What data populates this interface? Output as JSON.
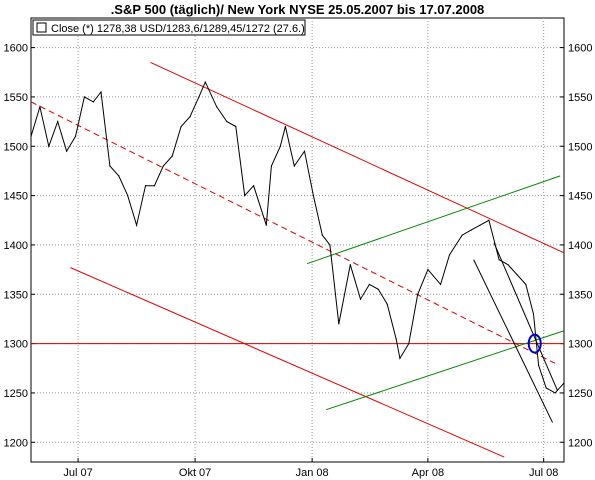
{
  "chart_data": {
    "type": "line",
    "title": ".S&P 500 (täglich)/ New York NYSE 25.05.2007 bis 17.07.2008",
    "legend": {
      "label": "Close (*) 1278,38 USD/1283,6/1289,45/1272 (27.6.)",
      "placement": "top-left"
    },
    "ylim": [
      1180,
      1630
    ],
    "y_ticks": [
      1200,
      1250,
      1300,
      1350,
      1400,
      1450,
      1500,
      1550,
      1600
    ],
    "y_tick_labels": [
      "1200",
      "1250",
      "1300",
      "1350",
      "1400",
      "1450",
      "1500",
      "1550",
      "1600"
    ],
    "xlim": [
      "2007-05-25",
      "2008-07-17"
    ],
    "x_ticks": [
      "2007-07-01",
      "2007-10-01",
      "2008-01-01",
      "2008-04-01",
      "2008-07-01"
    ],
    "x_tick_labels": [
      "Jul 07",
      "Okt 07",
      "Jan 08",
      "Apr 08",
      "Jul 08"
    ],
    "grid": true,
    "series": [
      {
        "name": "Close (*)",
        "color": "#000000",
        "x": [
          "2007-05-25",
          "2007-06-01",
          "2007-06-08",
          "2007-06-15",
          "2007-06-22",
          "2007-06-29",
          "2007-07-06",
          "2007-07-13",
          "2007-07-19",
          "2007-07-26",
          "2007-08-02",
          "2007-08-09",
          "2007-08-16",
          "2007-08-23",
          "2007-08-30",
          "2007-09-06",
          "2007-09-13",
          "2007-09-20",
          "2007-09-27",
          "2007-10-04",
          "2007-10-09",
          "2007-10-18",
          "2007-10-26",
          "2007-11-02",
          "2007-11-09",
          "2007-11-16",
          "2007-11-26",
          "2007-11-30",
          "2007-12-07",
          "2007-12-11",
          "2007-12-18",
          "2007-12-26",
          "2008-01-02",
          "2008-01-09",
          "2008-01-15",
          "2008-01-22",
          "2008-01-31",
          "2008-02-08",
          "2008-02-15",
          "2008-02-22",
          "2008-02-29",
          "2008-03-07",
          "2008-03-10",
          "2008-03-17",
          "2008-03-24",
          "2008-04-01",
          "2008-04-11",
          "2008-04-18",
          "2008-04-28",
          "2008-05-05",
          "2008-05-12",
          "2008-05-19",
          "2008-05-27",
          "2008-06-03",
          "2008-06-10",
          "2008-06-17",
          "2008-06-23",
          "2008-06-27",
          "2008-07-03",
          "2008-07-10",
          "2008-07-17"
        ],
        "values": [
          1510,
          1540,
          1500,
          1525,
          1495,
          1510,
          1550,
          1545,
          1555,
          1480,
          1470,
          1450,
          1420,
          1460,
          1460,
          1480,
          1490,
          1520,
          1530,
          1550,
          1565,
          1540,
          1525,
          1520,
          1450,
          1460,
          1420,
          1480,
          1500,
          1520,
          1480,
          1495,
          1450,
          1410,
          1400,
          1320,
          1380,
          1345,
          1360,
          1355,
          1340,
          1305,
          1285,
          1300,
          1350,
          1375,
          1360,
          1390,
          1410,
          1415,
          1420,
          1425,
          1385,
          1380,
          1370,
          1360,
          1330,
          1278,
          1255,
          1250,
          1260
        ]
      }
    ],
    "trendlines": [
      {
        "name": "",
        "color": "#dd0000",
        "style": "solid",
        "x": [
          "2007-08-27",
          "2008-07-17"
        ],
        "y": [
          1585,
          1392
        ]
      },
      {
        "name": "",
        "color": "#dd0000",
        "style": "dashed",
        "x": [
          "2007-05-25",
          "2008-07-10"
        ],
        "y": [
          1545,
          1280
        ]
      },
      {
        "name": "",
        "color": "#dd0000",
        "style": "solid",
        "x": [
          "2007-06-25",
          "2008-05-31"
        ],
        "y": [
          1377,
          1185
        ]
      },
      {
        "name": "",
        "color": "#008800",
        "style": "solid",
        "x": [
          "2007-12-28",
          "2008-07-14"
        ],
        "y": [
          1381,
          1470
        ]
      },
      {
        "name": "",
        "color": "#008800",
        "style": "solid",
        "x": [
          "2008-01-12",
          "2008-07-17"
        ],
        "y": [
          1233,
          1313
        ]
      },
      {
        "name": "",
        "color": "#000000",
        "style": "solid",
        "x": [
          "2008-05-23",
          "2008-07-12"
        ],
        "y": [
          1402,
          1252
        ]
      },
      {
        "name": "",
        "color": "#000000",
        "style": "solid",
        "x": [
          "2008-05-07",
          "2008-07-08"
        ],
        "y": [
          1385,
          1220
        ]
      }
    ],
    "horizontal_lines": [
      {
        "color": "#dd0000",
        "y": 1300
      }
    ],
    "markers": [
      {
        "shape": "ellipse",
        "color": "#0000cc",
        "x": "2008-06-24",
        "y": 1300
      }
    ]
  }
}
